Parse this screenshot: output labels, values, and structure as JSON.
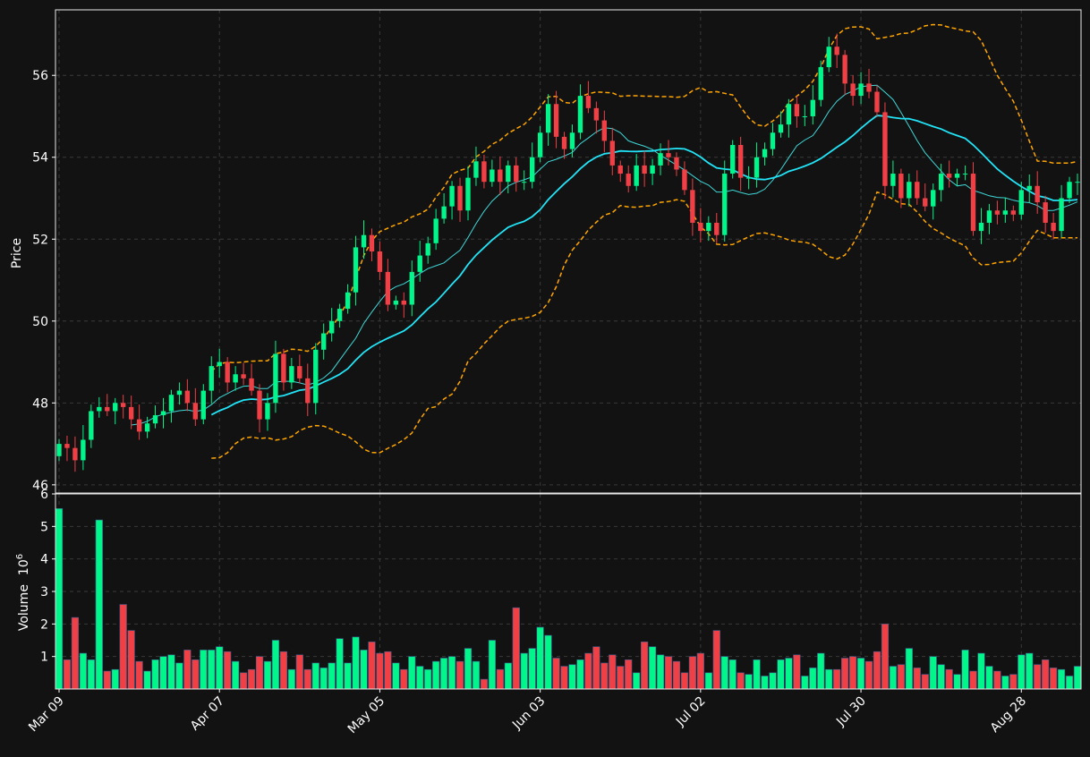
{
  "colors": {
    "background": "#121212",
    "panel_border": "#e8e8e8",
    "grid": "#3a3a3a",
    "text": "#ffffff",
    "up": "#00f58a",
    "down": "#f04046",
    "ma_fast": "#3fd8d8",
    "ma_slow": "#22e4f7",
    "bollinger": "#ffa500"
  },
  "chart_data": {
    "type": "candlestick",
    "title": "",
    "price_panel": {
      "ylabel": "Price",
      "ylim": [
        45.8,
        57.6
      ],
      "yticks": [
        46,
        48,
        50,
        52,
        54,
        56
      ],
      "grid": true
    },
    "volume_panel": {
      "ylabel": "Volume",
      "ylabel_exponent": "10",
      "ylabel_exponent_power": "6",
      "unit_multiplier": 1000000,
      "ylim": [
        0,
        6
      ],
      "yticks": [
        1,
        2,
        3,
        4,
        5,
        6
      ],
      "grid": true
    },
    "x_tick_labels": [
      {
        "label": "Mar 09",
        "index": 0
      },
      {
        "label": "Apr 07",
        "index": 20
      },
      {
        "label": "May 05",
        "index": 40
      },
      {
        "label": "Jun 03",
        "index": 60
      },
      {
        "label": "Jul 02",
        "index": 80
      },
      {
        "label": "Jul 30",
        "index": 100
      },
      {
        "label": "Aug 28",
        "index": 120
      }
    ],
    "overlays": [
      {
        "name": "",
        "kind": "sma",
        "window": 10,
        "color": "#3fd8d8"
      },
      {
        "name": "",
        "kind": "sma",
        "window": 20,
        "color": "#22e4f7"
      },
      {
        "name": "",
        "kind": "bollinger",
        "window": 20,
        "std": 2,
        "color": "#ffa500"
      }
    ],
    "close": [
      47.0,
      46.9,
      46.6,
      47.1,
      47.8,
      47.9,
      47.8,
      48.0,
      47.9,
      47.6,
      47.3,
      47.5,
      47.7,
      47.8,
      48.2,
      48.3,
      48.0,
      47.6,
      48.3,
      48.9,
      49.0,
      48.5,
      48.7,
      48.6,
      48.3,
      47.6,
      48.0,
      49.2,
      48.5,
      48.9,
      48.6,
      48.0,
      49.3,
      49.7,
      50.0,
      50.3,
      50.7,
      51.8,
      52.1,
      51.7,
      51.2,
      50.4,
      50.5,
      50.4,
      51.2,
      51.6,
      51.9,
      52.5,
      52.8,
      53.3,
      52.7,
      53.5,
      53.9,
      53.4,
      53.7,
      53.4,
      53.8,
      53.4,
      53.4,
      54.0,
      54.6,
      55.3,
      54.5,
      54.2,
      54.6,
      55.5,
      55.2,
      54.9,
      54.4,
      53.8,
      53.6,
      53.3,
      53.8,
      53.6,
      53.8,
      54.1,
      54.0,
      53.7,
      53.2,
      52.4,
      52.2,
      52.4,
      52.1,
      53.6,
      54.3,
      53.5,
      53.5,
      54.0,
      54.2,
      54.6,
      54.8,
      55.3,
      55.0,
      55.0,
      55.4,
      56.2,
      56.7,
      56.5,
      55.8,
      55.5,
      55.8,
      55.6,
      55.1,
      53.3,
      53.6,
      53.0,
      53.4,
      53.0,
      52.8,
      53.2,
      53.6,
      53.5,
      53.6,
      53.6,
      52.2,
      52.4,
      52.7,
      52.6,
      52.7,
      52.6,
      53.2,
      53.3,
      52.9,
      52.4,
      52.2,
      53.0,
      53.4,
      53.4
    ],
    "volume": [
      5.55,
      0.9,
      2.2,
      1.1,
      0.9,
      5.2,
      0.55,
      0.6,
      2.6,
      1.8,
      0.85,
      0.55,
      0.9,
      1.0,
      1.05,
      0.8,
      1.2,
      0.9,
      1.2,
      1.2,
      1.3,
      1.15,
      0.85,
      0.5,
      0.6,
      1.0,
      0.85,
      1.5,
      1.15,
      0.6,
      1.05,
      0.6,
      0.8,
      0.65,
      0.8,
      1.55,
      0.8,
      1.6,
      1.2,
      1.45,
      1.1,
      1.15,
      0.8,
      0.6,
      1.0,
      0.7,
      0.6,
      0.85,
      0.95,
      1.0,
      0.85,
      1.25,
      0.85,
      0.3,
      1.5,
      0.6,
      0.8,
      2.5,
      1.1,
      1.25,
      1.9,
      1.65,
      0.95,
      0.7,
      0.75,
      0.9,
      1.1,
      1.3,
      0.8,
      1.05,
      0.7,
      0.9,
      0.5,
      1.45,
      1.3,
      1.05,
      1.0,
      0.85,
      0.5,
      1.0,
      1.1,
      0.5,
      1.8,
      1.0,
      0.9,
      0.5,
      0.45,
      0.9,
      0.4,
      0.5,
      0.9,
      0.95,
      1.05,
      0.4,
      0.65,
      1.1,
      0.6,
      0.6,
      0.95,
      1.0,
      0.95,
      0.85,
      1.15,
      2.0,
      0.7,
      0.75,
      1.25,
      0.65,
      0.45,
      1.0,
      0.75,
      0.6,
      0.45,
      1.2,
      0.55,
      1.1,
      0.7,
      0.55,
      0.4,
      0.45,
      1.05,
      1.1,
      0.75,
      0.9,
      0.65,
      0.6,
      0.4,
      0.7
    ]
  }
}
